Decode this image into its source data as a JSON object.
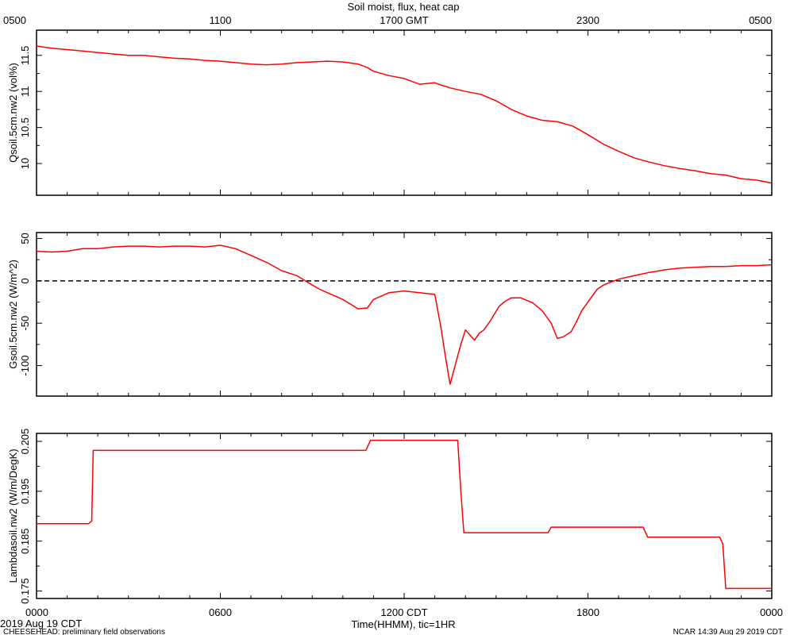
{
  "chart_data": [
    {
      "type": "line",
      "title": "Soil moist, flux, heat cap",
      "ylabel": "Qsoil.5cm.nw2 (vol%)",
      "top_xticks": [
        "0500",
        "1100",
        "1700 GMT",
        "2300",
        "0500"
      ],
      "yticks": [
        10.0,
        10.5,
        11.0,
        11.5
      ],
      "ylim": [
        9.56,
        11.85
      ],
      "xlim": [
        0,
        24
      ],
      "series": [
        {
          "color": "#ff0000",
          "x": [
            0,
            0.5,
            1,
            1.5,
            2,
            2.5,
            3,
            3.5,
            4,
            4.5,
            5,
            5.5,
            6,
            6.5,
            7,
            7.5,
            8,
            8.5,
            9,
            9.5,
            10,
            10.5,
            10.8,
            11,
            11.5,
            12,
            12.5,
            13,
            13.2,
            13.5,
            14,
            14.5,
            15,
            15.5,
            16,
            16.5,
            17,
            17.5,
            18,
            18.5,
            19,
            19.5,
            20,
            20.5,
            21,
            21.5,
            22,
            22.5,
            23,
            23.5,
            24
          ],
          "y": [
            11.63,
            11.6,
            11.58,
            11.56,
            11.54,
            11.52,
            11.5,
            11.5,
            11.48,
            11.46,
            11.45,
            11.43,
            11.42,
            11.4,
            11.38,
            11.37,
            11.38,
            11.4,
            11.41,
            11.42,
            11.41,
            11.38,
            11.33,
            11.28,
            11.22,
            11.18,
            11.1,
            11.12,
            11.09,
            11.05,
            11.0,
            10.96,
            10.87,
            10.75,
            10.66,
            10.6,
            10.58,
            10.52,
            10.4,
            10.27,
            10.17,
            10.08,
            10.02,
            9.97,
            9.93,
            9.9,
            9.86,
            9.84,
            9.79,
            9.77,
            9.73
          ]
        }
      ]
    },
    {
      "type": "line",
      "ylabel": "Gsoil.5cm.nw2 (W/m^2)",
      "yticks": [
        -100,
        -50,
        0,
        50
      ],
      "ylim": [
        -136,
        57
      ],
      "xlim": [
        0,
        24
      ],
      "zero_line": "dashed",
      "series": [
        {
          "color": "#ff0000",
          "x": [
            0,
            0.5,
            1,
            1.5,
            2,
            2.5,
            3,
            3.5,
            4,
            4.5,
            5,
            5.5,
            6,
            6.5,
            7,
            7.5,
            8,
            8.5,
            9,
            9.25,
            9.5,
            10,
            10.5,
            10.8,
            11,
            11.5,
            12,
            12.5,
            13,
            13.2,
            13.35,
            13.5,
            13.7,
            13.85,
            14,
            14.3,
            14.45,
            14.6,
            14.8,
            15.1,
            15.3,
            15.5,
            15.8,
            16.2,
            16.5,
            16.8,
            17.0,
            17.2,
            17.45,
            17.6,
            17.8,
            18.0,
            18.3,
            18.5,
            19,
            19.5,
            20,
            20.5,
            21,
            21.5,
            22,
            22.5,
            23,
            23.5,
            24
          ],
          "y": [
            35,
            34,
            35,
            38,
            38,
            40,
            41,
            41,
            40,
            41,
            41,
            40,
            42,
            38,
            30,
            22,
            12,
            6,
            -5,
            -10,
            -14,
            -22,
            -33,
            -32,
            -22,
            -14,
            -12,
            -14,
            -16,
            -55,
            -90,
            -122,
            -95,
            -75,
            -58,
            -70,
            -62,
            -58,
            -48,
            -30,
            -24,
            -20,
            -20,
            -26,
            -35,
            -50,
            -68,
            -66,
            -60,
            -50,
            -35,
            -25,
            -10,
            -5,
            2,
            6,
            10,
            13,
            15,
            16,
            17,
            17,
            18,
            18,
            19
          ]
        }
      ]
    },
    {
      "type": "line",
      "ylabel": "Lambdasoil.nw2 (W/m/DegK)",
      "bottom_xticks": [
        "0000",
        "0600",
        "1200 CDT",
        "1800",
        "0000"
      ],
      "xlabel": "Time(HHMM), tic=1HR",
      "yticks": [
        0.175,
        0.185,
        0.195,
        0.205
      ],
      "ylim": [
        0.1735,
        0.2066
      ],
      "xlim": [
        0,
        24
      ],
      "series": [
        {
          "color": "#ff0000",
          "x": [
            0,
            1.7,
            1.8,
            1.85,
            10.75,
            10.9,
            11.55,
            13.75,
            13.85,
            13.95,
            16.7,
            16.8,
            19.8,
            19.95,
            22.3,
            22.4,
            22.5,
            24
          ],
          "y": [
            0.1885,
            0.1885,
            0.189,
            0.2032,
            0.2032,
            0.2052,
            0.2052,
            0.2052,
            0.195,
            0.1867,
            0.1867,
            0.1878,
            0.1878,
            0.1858,
            0.1858,
            0.1845,
            0.1755,
            0.1755
          ]
        }
      ]
    }
  ],
  "footer": {
    "date_left": "2019 Aug 19 CDT",
    "project": "CHEESEHEAD: preliminary field observations",
    "credit": "NCAR 14:39 Aug 29 2019 CDT"
  },
  "colors": {
    "series": "#ff0000",
    "axes": "#000000"
  }
}
